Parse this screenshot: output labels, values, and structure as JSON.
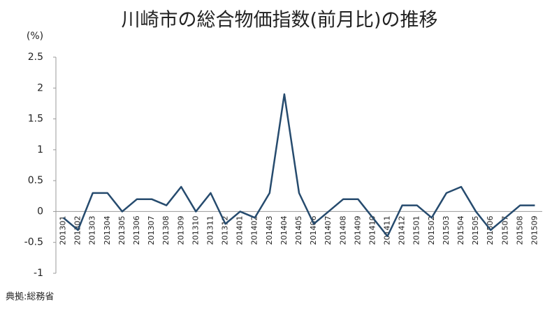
{
  "chart_data": {
    "type": "line",
    "title": "川崎市の総合物価指数(前月比)の推移",
    "y_label": "(%)",
    "source": "典拠:総務省",
    "categories": [
      "201301",
      "201302",
      "201303",
      "201304",
      "201305",
      "201306",
      "201307",
      "201308",
      "201309",
      "201310",
      "201311",
      "201312",
      "201401",
      "201402",
      "201403",
      "201404",
      "201405",
      "201406",
      "201407",
      "201408",
      "201409",
      "201410",
      "201411",
      "201412",
      "201501",
      "201502",
      "201503",
      "201504",
      "201505",
      "201506",
      "201507",
      "201508",
      "201509"
    ],
    "series": [
      {
        "name": "前月比",
        "color": "#264b6e",
        "values": [
          -0.1,
          -0.3,
          0.3,
          0.3,
          0.0,
          0.2,
          0.2,
          0.1,
          0.4,
          0.0,
          0.3,
          -0.2,
          0.0,
          -0.1,
          0.3,
          1.9,
          0.3,
          -0.2,
          0.0,
          0.2,
          0.2,
          -0.1,
          -0.4,
          0.1,
          0.1,
          -0.1,
          0.3,
          0.4,
          0.0,
          -0.3,
          -0.1,
          0.1,
          0.1
        ]
      }
    ],
    "ylim": [
      -1,
      2.5
    ],
    "yticks": [
      -1,
      -0.5,
      0,
      0.5,
      1,
      1.5,
      2,
      2.5
    ],
    "grid": false
  }
}
